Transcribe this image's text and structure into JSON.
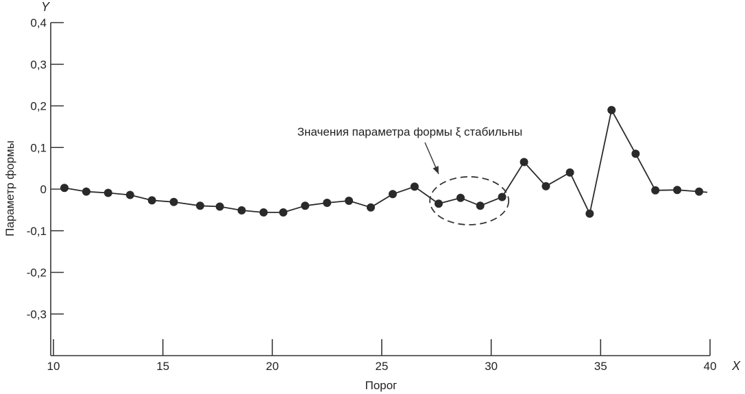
{
  "chart_data": {
    "type": "line",
    "xlabel": "Порог",
    "ylabel": "Параметр формы",
    "x_axis_letter": "X",
    "y_axis_letter": "Y",
    "xlim": [
      10,
      40
    ],
    "ylim": [
      -0.4,
      0.4
    ],
    "x_ticks": [
      10,
      15,
      20,
      25,
      30,
      35,
      40
    ],
    "x_tick_labels": [
      "10",
      "15",
      "20",
      "25",
      "30",
      "35",
      "40"
    ],
    "y_ticks": [
      0.4,
      0.3,
      0.2,
      0.1,
      0,
      -0.1,
      -0.2,
      -0.3
    ],
    "y_tick_labels": [
      "0,4",
      "0,3",
      "0,2",
      "0,1",
      "0",
      "-0,1",
      "-0,2",
      "-0,3"
    ],
    "grid": false,
    "series": [
      {
        "x": [
          10.5,
          11.5,
          12.5,
          13.5,
          14.5,
          15.5,
          16.7,
          17.6,
          18.6,
          19.6,
          20.5,
          21.5,
          22.5,
          23.5,
          24.5,
          25.5,
          26.5,
          27.6,
          28.6,
          29.5,
          30.5,
          31.5,
          32.5,
          33.6,
          34.5,
          35.5,
          36.6,
          37.5,
          38.5,
          39.5
        ],
        "y": [
          0.003,
          -0.006,
          -0.009,
          -0.014,
          -0.027,
          -0.031,
          -0.04,
          -0.042,
          -0.051,
          -0.056,
          -0.056,
          -0.04,
          -0.033,
          -0.028,
          -0.044,
          -0.012,
          0.006,
          -0.035,
          -0.021,
          -0.04,
          -0.019,
          0.065,
          0.007,
          0.04,
          -0.059,
          0.19,
          0.085,
          -0.003,
          -0.002,
          -0.006
        ],
        "color": "#2a2a2a"
      }
    ],
    "annotations": [
      {
        "text": "Значения параметра формы ξ стабильны",
        "target_x_range": [
          27.2,
          30.8
        ],
        "target_y_center": -0.028
      }
    ],
    "axis_color": "#333333"
  }
}
